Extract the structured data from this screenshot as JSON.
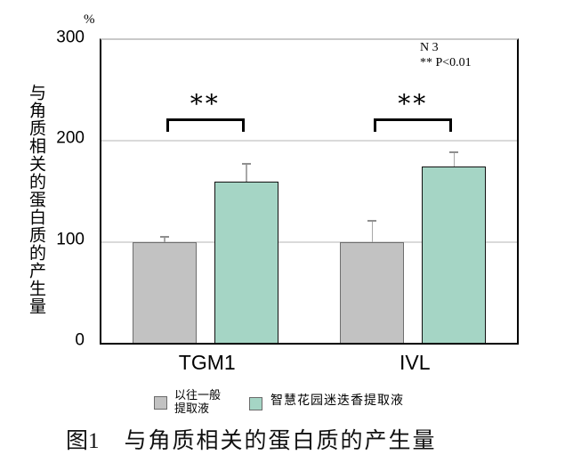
{
  "chart_data": {
    "type": "bar",
    "title": "",
    "unit": "%",
    "categories": [
      "TGM1",
      "IVL"
    ],
    "series": [
      {
        "name": "以往一般提取液",
        "color": "#c2c2c2",
        "border_color": "#6e6e6e",
        "values": [
          100,
          100
        ],
        "errors_plus": [
          6,
          22
        ]
      },
      {
        "name": "智慧花园迷迭香提取液",
        "color": "#a5d5c5",
        "border_color": "#111111",
        "values": [
          160,
          175
        ],
        "errors_plus": [
          18,
          15
        ]
      }
    ],
    "xlabel": "",
    "ylabel": "与角质相关的蛋白质的产生量",
    "ylim": [
      0,
      300
    ],
    "yticks": [
      0,
      100,
      200,
      300
    ],
    "grid": true,
    "legend_position": "bottom",
    "annotations": [
      "N 3",
      "** P<0.01"
    ],
    "significance": [
      {
        "category": "TGM1",
        "label": "**"
      },
      {
        "category": "IVL",
        "label": "**"
      }
    ]
  },
  "legend": {
    "items": [
      {
        "swatch_color": "#c2c2c2",
        "lines": [
          "以往一般",
          "提取液"
        ]
      },
      {
        "swatch_color": "#a5d5c5",
        "lines": [
          "智慧花园迷迭香提取液"
        ]
      }
    ]
  },
  "caption": {
    "figure_no": "图1",
    "text": "与角质相关的蛋白质的产生量"
  },
  "colors": {
    "grid": "#dadada",
    "axis": "#000000",
    "error_bar": "#a8a8a8",
    "background": "#ffffff"
  }
}
